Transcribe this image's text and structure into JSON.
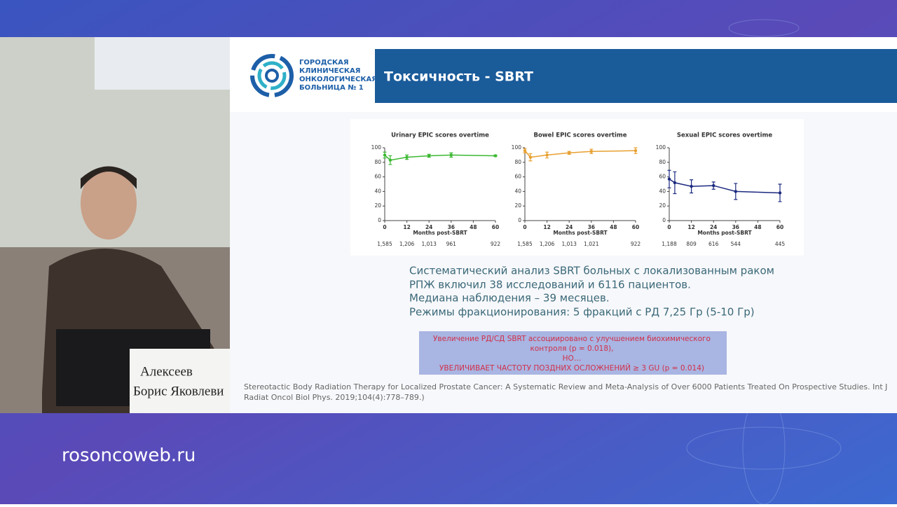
{
  "site": "rosoncoweb.ru",
  "speaker_sign": [
    "Алексеев",
    "Борис Яковлеви"
  ],
  "slide": {
    "logo_text": [
      "ГОРОДСКАЯ",
      "КЛИНИЧЕСКАЯ",
      "ОНКОЛОГИЧЕСКАЯ",
      "БОЛЬНИЦА № 1"
    ],
    "title": "Токсичность - SBRT",
    "charts": [
      {
        "type": "line",
        "title": "Urinary EPIC scores overtime",
        "x_label": "Months post-SBRT",
        "color": "#3cb832",
        "x": [
          0,
          3,
          12,
          24,
          36,
          60
        ],
        "values": [
          90,
          83,
          87,
          89,
          90,
          89
        ],
        "errors": [
          4,
          6,
          3,
          2,
          3,
          1
        ],
        "xlim": [
          0,
          60
        ],
        "xticks": [
          0,
          12,
          24,
          36,
          48,
          60
        ],
        "ylim": [
          0,
          100
        ],
        "yticks": [
          0,
          20,
          40,
          60,
          80,
          100
        ],
        "at_risk": {
          "x": [
            0,
            12,
            24,
            36,
            60
          ],
          "values": [
            1585,
            1206,
            1013,
            961,
            922
          ],
          "value_labels": [
            "1,585",
            "1,206",
            "1,013",
            "961",
            "922"
          ]
        }
      },
      {
        "type": "line",
        "title": "Bowel EPIC scores overtime",
        "x_label": "Months post-SBRT",
        "color": "#e8a030",
        "x": [
          0,
          3,
          12,
          24,
          36,
          60
        ],
        "values": [
          96,
          87,
          90,
          93,
          95,
          96
        ],
        "errors": [
          3,
          5,
          4,
          2,
          3,
          4
        ],
        "xlim": [
          0,
          60
        ],
        "xticks": [
          0,
          12,
          24,
          36,
          48,
          60
        ],
        "ylim": [
          0,
          100
        ],
        "yticks": [
          0,
          20,
          40,
          60,
          80,
          100
        ],
        "at_risk": {
          "x": [
            0,
            12,
            24,
            36,
            60
          ],
          "values": [
            1585,
            1206,
            1013,
            1021,
            922
          ],
          "value_labels": [
            "1,585",
            "1,206",
            "1,013",
            "1,021",
            "922"
          ]
        }
      },
      {
        "type": "line",
        "title": "Sexual EPIC scores overtime",
        "x_label": "Months post-SBRT",
        "color": "#1c2a80",
        "x": [
          0,
          3,
          12,
          24,
          36,
          60
        ],
        "values": [
          57,
          52,
          47,
          48,
          40,
          38
        ],
        "errors": [
          12,
          15,
          9,
          5,
          11,
          12
        ],
        "xlim": [
          0,
          60
        ],
        "xticks": [
          0,
          12,
          24,
          36,
          48,
          60
        ],
        "ylim": [
          0,
          100
        ],
        "yticks": [
          0,
          20,
          40,
          60,
          80,
          100
        ],
        "at_risk": {
          "x": [
            0,
            12,
            24,
            36,
            60
          ],
          "values": [
            1188,
            809,
            616,
            544,
            445
          ],
          "value_labels": [
            "1,188",
            "809",
            "616",
            "544",
            "445"
          ]
        }
      }
    ],
    "body": [
      "Систематический анализ SBRT больных с локализованным раком",
      "РПЖ включил 38 исследований и 6116 пациентов.",
      "Медиана наблюдения – 39 месяцев.",
      "Режимы фракционирования: 5 фракций с РД 7,25 Гр (5-10 Гр)"
    ],
    "box": [
      "Увеличение РД/СД SBRT ассоциировано с улучшением биохимического",
      "контроля (p = 0.018),",
      "НО…",
      "УВЕЛИЧИВАЕТ ЧАСТОТУ ПОЗДНИХ ОСЛОЖНЕНИЙ ≥ 3 GU (p = 0.014)"
    ],
    "reference": [
      "Stereotactic Body Radiation Therapy for Localized Prostate Cancer: A Systematic Review and Meta-Analysis of Over 6000 Patients Treated On Prospective Studies. Int J",
      "Radiat Oncol Biol Phys. 2019;104(4):778–789.)"
    ]
  }
}
